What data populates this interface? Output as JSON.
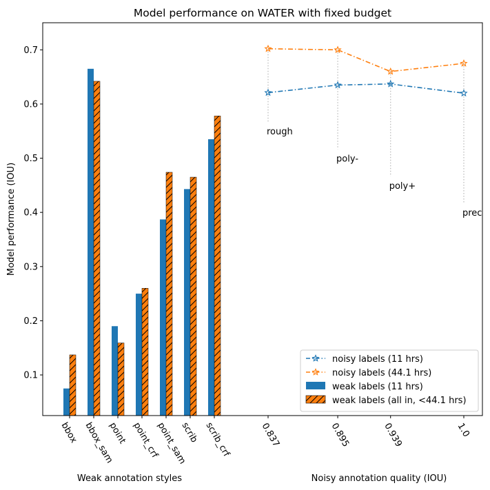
{
  "chart_data": {
    "type": "bar+line",
    "title": "Model performance on WATER with fixed budget",
    "ylabel": "Model performance (IOU)",
    "ylim": [
      0.025,
      0.75
    ],
    "yticks": [
      "0.1",
      "0.2",
      "0.3",
      "0.4",
      "0.5",
      "0.6",
      "0.7"
    ],
    "ytick_values": [
      0.1,
      0.2,
      0.3,
      0.4,
      0.5,
      0.6,
      0.7
    ],
    "bar_section": {
      "xlabel": "Weak annotation styles",
      "categories": [
        "bbox",
        "bbox_sam",
        "point",
        "point_crf",
        "point_sam",
        "scrib",
        "scrib_crf"
      ],
      "series": [
        {
          "name": "weak labels (11 hrs)",
          "color": "#1f77b4",
          "hatch": false,
          "values": [
            0.075,
            0.665,
            0.19,
            0.25,
            0.387,
            0.443,
            0.535
          ]
        },
        {
          "name": "weak labels (all in, <44.1 hrs)",
          "color": "#ff7f0e",
          "hatch": true,
          "values": [
            0.137,
            0.642,
            0.159,
            0.26,
            0.474,
            0.465,
            0.578
          ]
        }
      ]
    },
    "line_section": {
      "xlabel": "Noisy annotation quality (IOU)",
      "x": [
        0.837,
        0.895,
        0.939,
        1.0
      ],
      "xtick_labels": [
        "0.837",
        "0.895",
        "0.939",
        "1.0"
      ],
      "annotations": [
        {
          "text": "rough",
          "x": 0.837,
          "y": 0.55
        },
        {
          "text": "poly-",
          "x": 0.895,
          "y": 0.5
        },
        {
          "text": "poly+",
          "x": 0.939,
          "y": 0.45
        },
        {
          "text": "prec",
          "x": 1.0,
          "y": 0.4
        }
      ],
      "series": [
        {
          "name": "noisy labels (11 hrs)",
          "color": "#1f77b4",
          "values": [
            0.621,
            0.635,
            0.637,
            0.62
          ]
        },
        {
          "name": "noisy labels (44.1 hrs)",
          "color": "#ff7f0e",
          "values": [
            0.702,
            0.7,
            0.66,
            0.675
          ]
        }
      ]
    },
    "legend": {
      "position": "lower-right",
      "entries": [
        "noisy labels (11 hrs)",
        "noisy labels (44.1 hrs)",
        "weak labels (11 hrs)",
        "weak labels (all in, <44.1 hrs)"
      ]
    }
  }
}
